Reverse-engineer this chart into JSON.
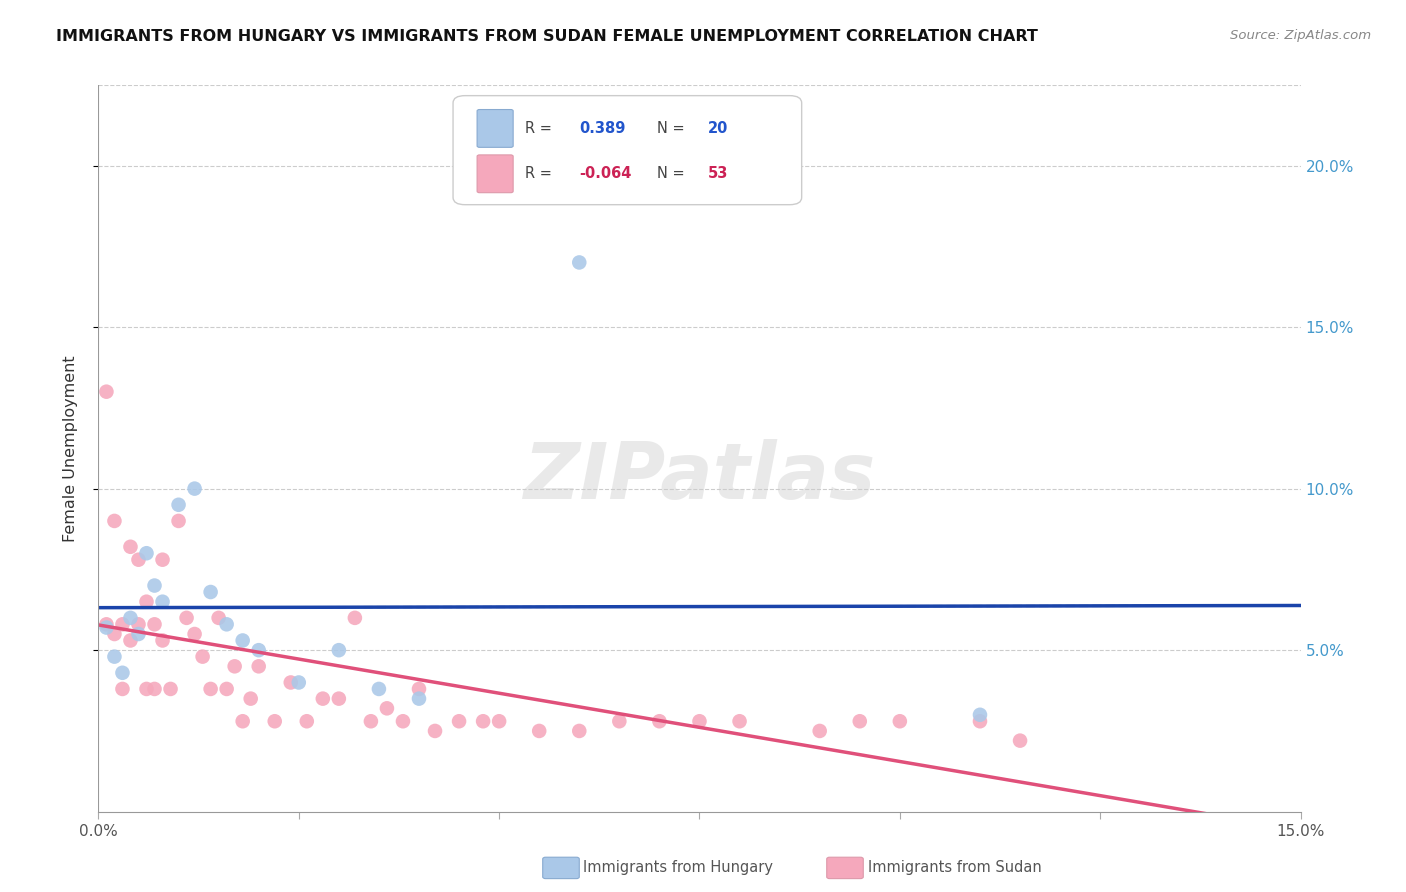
{
  "title": "IMMIGRANTS FROM HUNGARY VS IMMIGRANTS FROM SUDAN FEMALE UNEMPLOYMENT CORRELATION CHART",
  "source": "Source: ZipAtlas.com",
  "ylabel": "Female Unemployment",
  "y_ticks": [
    0.05,
    0.1,
    0.15,
    0.2
  ],
  "y_tick_labels": [
    "5.0%",
    "10.0%",
    "15.0%",
    "20.0%"
  ],
  "xlim": [
    0.0,
    0.15
  ],
  "ylim": [
    0.0,
    0.225
  ],
  "legend_hungary_r": "0.389",
  "legend_hungary_n": "20",
  "legend_sudan_r": "-0.064",
  "legend_sudan_n": "53",
  "hungary_color": "#aac8e8",
  "sudan_color": "#f5a8bc",
  "hungary_line_color": "#1a44aa",
  "sudan_line_color": "#e0507a",
  "dashed_line_color": "#bbbbbb",
  "watermark": "ZIPatlas",
  "background_color": "#ffffff",
  "hungary_x": [
    0.001,
    0.002,
    0.003,
    0.004,
    0.005,
    0.006,
    0.007,
    0.008,
    0.01,
    0.012,
    0.014,
    0.016,
    0.018,
    0.02,
    0.025,
    0.03,
    0.035,
    0.04,
    0.06,
    0.11
  ],
  "hungary_y": [
    0.057,
    0.048,
    0.043,
    0.06,
    0.055,
    0.08,
    0.07,
    0.065,
    0.095,
    0.1,
    0.068,
    0.058,
    0.053,
    0.05,
    0.04,
    0.05,
    0.038,
    0.035,
    0.17,
    0.03
  ],
  "sudan_x": [
    0.001,
    0.001,
    0.002,
    0.002,
    0.003,
    0.003,
    0.004,
    0.004,
    0.005,
    0.005,
    0.006,
    0.006,
    0.007,
    0.007,
    0.008,
    0.008,
    0.009,
    0.01,
    0.011,
    0.012,
    0.013,
    0.014,
    0.015,
    0.016,
    0.017,
    0.018,
    0.019,
    0.02,
    0.022,
    0.024,
    0.026,
    0.028,
    0.03,
    0.032,
    0.034,
    0.036,
    0.038,
    0.04,
    0.042,
    0.045,
    0.048,
    0.05,
    0.055,
    0.06,
    0.065,
    0.07,
    0.075,
    0.08,
    0.09,
    0.095,
    0.1,
    0.11,
    0.115
  ],
  "sudan_y": [
    0.13,
    0.058,
    0.09,
    0.055,
    0.058,
    0.038,
    0.082,
    0.053,
    0.058,
    0.078,
    0.065,
    0.038,
    0.058,
    0.038,
    0.078,
    0.053,
    0.038,
    0.09,
    0.06,
    0.055,
    0.048,
    0.038,
    0.06,
    0.038,
    0.045,
    0.028,
    0.035,
    0.045,
    0.028,
    0.04,
    0.028,
    0.035,
    0.035,
    0.06,
    0.028,
    0.032,
    0.028,
    0.038,
    0.025,
    0.028,
    0.028,
    0.028,
    0.025,
    0.025,
    0.028,
    0.028,
    0.028,
    0.028,
    0.025,
    0.028,
    0.028,
    0.028,
    0.022
  ]
}
